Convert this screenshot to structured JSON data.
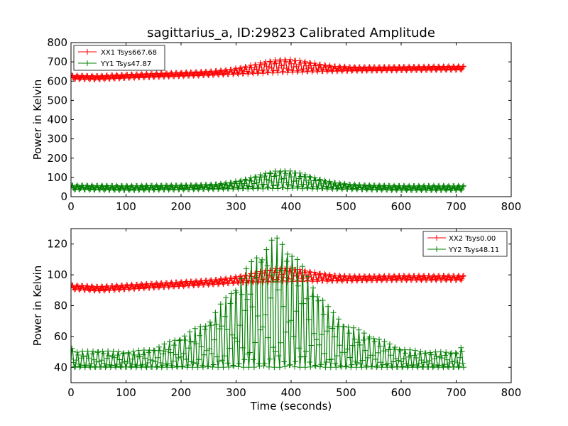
{
  "chart_data": [
    {
      "type": "line",
      "title": "sagittarius_a, ID:29823 Calibrated Amplitude",
      "xlabel": "",
      "ylabel": "Power in Kelvin",
      "xlim": [
        0,
        800
      ],
      "ylim": [
        0,
        800
      ],
      "xticks": [
        "0",
        "100",
        "200",
        "300",
        "400",
        "500",
        "600",
        "700",
        "800"
      ],
      "yticks": [
        "0",
        "100",
        "200",
        "300",
        "400",
        "500",
        "600",
        "700",
        "800"
      ],
      "legend_position": "top-left",
      "series": [
        {
          "name": "XX1 Tsys667.68",
          "color": "#ff0000",
          "marker": "plus",
          "x_range": [
            0,
            715
          ],
          "baseline": [
            [
              0,
              620
            ],
            [
              50,
              618
            ],
            [
              100,
              625
            ],
            [
              200,
              635
            ],
            [
              300,
              645
            ],
            [
              400,
              655
            ],
            [
              500,
              662
            ],
            [
              600,
              665
            ],
            [
              715,
              668
            ]
          ],
          "bump_center": 385,
          "bump_width": 70,
          "bump_amplitude": 50,
          "ripple_amplitude": 10,
          "ripple_period": 9
        },
        {
          "name": "YY1 Tsys47.87",
          "color": "#008000",
          "marker": "plus",
          "x_range": [
            0,
            715
          ],
          "baseline": [
            [
              0,
              48
            ],
            [
              100,
              45
            ],
            [
              200,
              48
            ],
            [
              300,
              52
            ],
            [
              400,
              54
            ],
            [
              500,
              50
            ],
            [
              600,
              45
            ],
            [
              715,
              45
            ]
          ],
          "bump_center": 385,
          "bump_width": 70,
          "bump_amplitude": 70,
          "ripple_amplitude": 12,
          "ripple_period": 9
        }
      ]
    },
    {
      "type": "line",
      "title": "",
      "xlabel": "Time (seconds)",
      "ylabel": "Power in Kelvin",
      "xlim": [
        0,
        800
      ],
      "ylim": [
        30,
        130
      ],
      "xticks": [
        "0",
        "100",
        "200",
        "300",
        "400",
        "500",
        "600",
        "700",
        "800"
      ],
      "yticks": [
        "40",
        "60",
        "80",
        "100",
        "120"
      ],
      "legend_position": "top-right",
      "series": [
        {
          "name": "XX2 Tsys0.00",
          "color": "#ff0000",
          "marker": "plus",
          "x_range": [
            0,
            715
          ],
          "baseline": [
            [
              0,
              92
            ],
            [
              50,
              91
            ],
            [
              100,
              92
            ],
            [
              200,
              94
            ],
            [
              300,
              96
            ],
            [
              400,
              97
            ],
            [
              500,
              97.5
            ],
            [
              600,
              98
            ],
            [
              715,
              98
            ]
          ],
          "bump_center": 385,
          "bump_width": 70,
          "bump_amplitude": 6,
          "ripple_amplitude": 1.5,
          "ripple_period": 9
        },
        {
          "name": "YY2 Tsys48.11",
          "color": "#008000",
          "marker": "plus",
          "x_range": [
            0,
            715
          ],
          "base_low": 40,
          "upper_envelope": [
            [
              0,
              55
            ],
            [
              5,
              50
            ],
            [
              50,
              51
            ],
            [
              100,
              50
            ],
            [
              150,
              52
            ],
            [
              200,
              60
            ],
            [
              250,
              70
            ],
            [
              300,
              95
            ],
            [
              340,
              115
            ],
            [
              370,
              125
            ],
            [
              400,
              118
            ],
            [
              430,
              100
            ],
            [
              470,
              78
            ],
            [
              500,
              68
            ],
            [
              550,
              60
            ],
            [
              600,
              52
            ],
            [
              650,
              50
            ],
            [
              700,
              50
            ],
            [
              715,
              55
            ]
          ],
          "oscillation_period": 9.3
        }
      ]
    }
  ]
}
